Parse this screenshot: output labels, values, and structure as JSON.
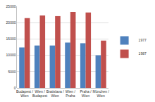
{
  "chart_data": {
    "type": "bar",
    "categories": [
      "Budapest / Wien",
      "Wien / Budapest",
      "Bratislava / Wien",
      "Wien / Praha",
      "Praha / Wien",
      "München / Wien"
    ],
    "series": [
      {
        "name": "1977",
        "color": "#4f81bd",
        "values": [
          12400,
          13000,
          13000,
          13900,
          13700,
          10000
        ]
      },
      {
        "name": "1987",
        "color": "#c0504d",
        "values": [
          21400,
          22200,
          22000,
          23300,
          23100,
          14500
        ]
      }
    ],
    "ylim": [
      0,
      25000
    ],
    "yticks": [
      0,
      5000,
      10000,
      15000,
      20000,
      25000
    ],
    "grid": true,
    "legend": "right"
  }
}
